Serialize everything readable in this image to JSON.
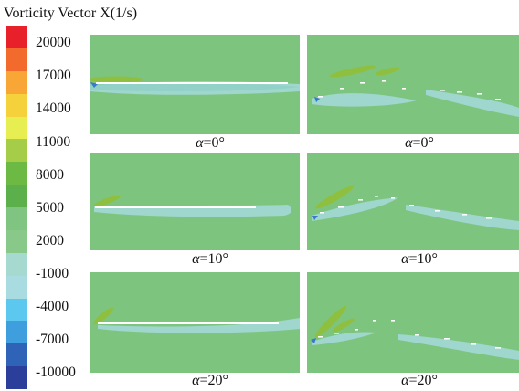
{
  "title": "Vorticity Vector X(1/s)",
  "colorbar": {
    "tick_labels": [
      "20000",
      "17000",
      "14000",
      "11000",
      "8000",
      "5000",
      "2000",
      "-1000",
      "-4000",
      "-7000",
      "-10000"
    ],
    "colors": [
      "#e8202a",
      "#f26a2c",
      "#f8a736",
      "#f5d23c",
      "#e7ee52",
      "#a6cd48",
      "#6cb944",
      "#5cb04b",
      "#7fc480",
      "#88c98a",
      "#a6d9cf",
      "#a9dce0",
      "#5cc7ef",
      "#3e9ede",
      "#2f63b7",
      "#2b3f9a"
    ]
  },
  "panels": [
    {
      "id": "left-a0",
      "caption_symbol": "α",
      "caption_value": "=0°"
    },
    {
      "id": "right-a0",
      "caption_symbol": "α",
      "caption_value": "=0°"
    },
    {
      "id": "left-a10",
      "caption_symbol": "α",
      "caption_value": "=10°"
    },
    {
      "id": "right-a10",
      "caption_symbol": "α",
      "caption_value": "=10°"
    },
    {
      "id": "left-a20",
      "caption_symbol": "α",
      "caption_value": "=20°"
    },
    {
      "id": "right-a20",
      "caption_symbol": "α",
      "caption_value": "=20°"
    }
  ],
  "colors": {
    "field": "#7dc47f",
    "wake": "#9fd6cd",
    "positive": "#8fbf3f",
    "negative": "#3a78c9",
    "plate": "#ffffff"
  }
}
